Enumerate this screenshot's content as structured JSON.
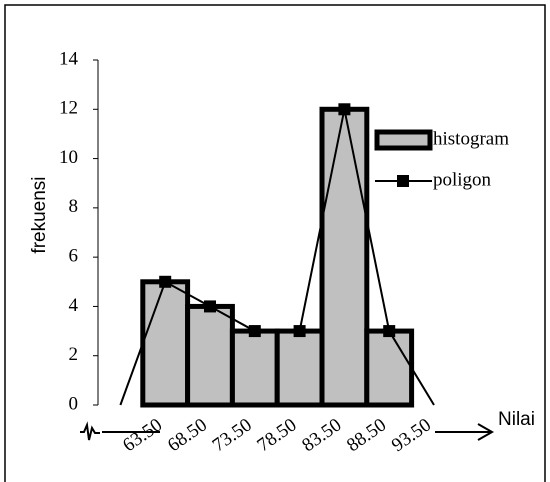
{
  "chart_data": {
    "type": "histogram",
    "y_label": "frekuensi",
    "x_label": "Nilai",
    "bins": [
      63.5,
      68.5,
      73.5,
      78.5,
      83.5,
      88.5,
      93.5
    ],
    "xticks": [
      {
        "value": 63.5,
        "label": "63.50"
      },
      {
        "value": 68.5,
        "label": "68.50"
      },
      {
        "value": 73.5,
        "label": "73.50"
      },
      {
        "value": 78.5,
        "label": "78.50"
      },
      {
        "value": 83.5,
        "label": "83.50"
      },
      {
        "value": 88.5,
        "label": "88.50"
      },
      {
        "value": 93.5,
        "label": "93.50"
      }
    ],
    "xlim": [
      58.5,
      96
    ],
    "ylim": [
      0,
      14
    ],
    "yticks": [
      0,
      2,
      4,
      6,
      8,
      10,
      12,
      14
    ],
    "legend": "right",
    "series": [
      {
        "name": "histogram",
        "type": "histogram",
        "color": "#c0c0c0",
        "values": [
          5,
          4,
          3,
          3,
          12,
          3
        ]
      },
      {
        "name": "poligon",
        "type": "line",
        "color": "#000000",
        "x": [
          61,
          66,
          71,
          76,
          81,
          86,
          91,
          96
        ],
        "values": [
          0,
          5,
          4,
          3,
          3,
          12,
          3,
          0
        ]
      }
    ]
  }
}
